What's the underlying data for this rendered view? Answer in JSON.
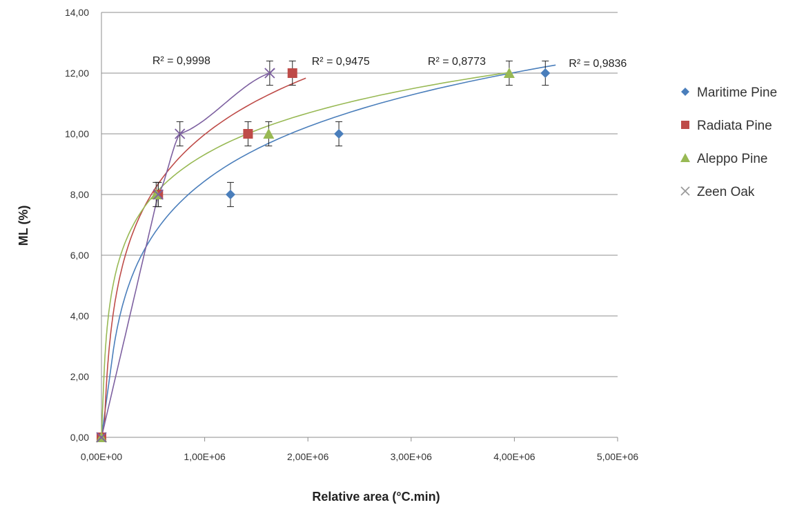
{
  "chart_data": {
    "type": "scatter",
    "title": "",
    "xlabel": "Relative area (°C.min)",
    "ylabel": "ML (%)",
    "xlim": [
      0,
      5000000
    ],
    "ylim": [
      0,
      14
    ],
    "xticks": [
      0,
      1000000,
      2000000,
      3000000,
      4000000,
      5000000
    ],
    "xtick_labels": [
      "0,00E+00",
      "1,00E+06",
      "2,00E+06",
      "3,00E+06",
      "4,00E+06",
      "5,00E+06"
    ],
    "yticks": [
      0,
      2,
      4,
      6,
      8,
      10,
      12,
      14
    ],
    "ytick_labels": [
      "0,00",
      "2,00",
      "4,00",
      "6,00",
      "8,00",
      "10,00",
      "12,00",
      "14,00"
    ],
    "grid": "horizontal",
    "legend_position": "right",
    "error_bar": 0.4,
    "series": [
      {
        "name": "Maritime Pine",
        "marker": "diamond",
        "color": "#4a7ebb",
        "line_color": "#4a7ebb",
        "x": [
          0,
          1250000,
          2300000,
          4300000
        ],
        "y": [
          0,
          8,
          10,
          12
        ],
        "fit": {
          "model": "log",
          "a": 2.58,
          "b": -27.2,
          "x_range": [
            115000,
            4400000
          ]
        },
        "r2_label": "R² = 0,9836"
      },
      {
        "name": "Radiata Pine",
        "marker": "square",
        "color": "#be4b48",
        "line_color": "#be4b48",
        "x": [
          0,
          550000,
          1420000,
          1850000
        ],
        "y": [
          0,
          8,
          10,
          12
        ],
        "fit": {
          "model": "log",
          "a": 2.72,
          "b": -27.6,
          "x_range": [
            30000,
            1980000
          ]
        },
        "r2_label": "R² = 0,9475"
      },
      {
        "name": "Aleppo Pine",
        "marker": "triangle",
        "color": "#98b954",
        "line_color": "#98b954",
        "x": [
          0,
          530000,
          1620000,
          3950000
        ],
        "y": [
          0,
          8,
          10,
          12
        ],
        "fit": {
          "model": "log",
          "a": 1.97,
          "b": -17.9,
          "x_range": [
            25000,
            3950000
          ]
        },
        "r2_label": "R² = 0,8773"
      },
      {
        "name": "Zeen Oak",
        "marker": "x",
        "color": "#7d60a0",
        "line_color": "#7d60a0",
        "x": [
          0,
          550000,
          760000,
          1630000
        ],
        "y": [
          0,
          8,
          10,
          12
        ],
        "fit": {
          "model": "poly",
          "x_range": [
            0,
            1680000
          ]
        },
        "r2_label": "R² = 0,9998"
      }
    ]
  }
}
